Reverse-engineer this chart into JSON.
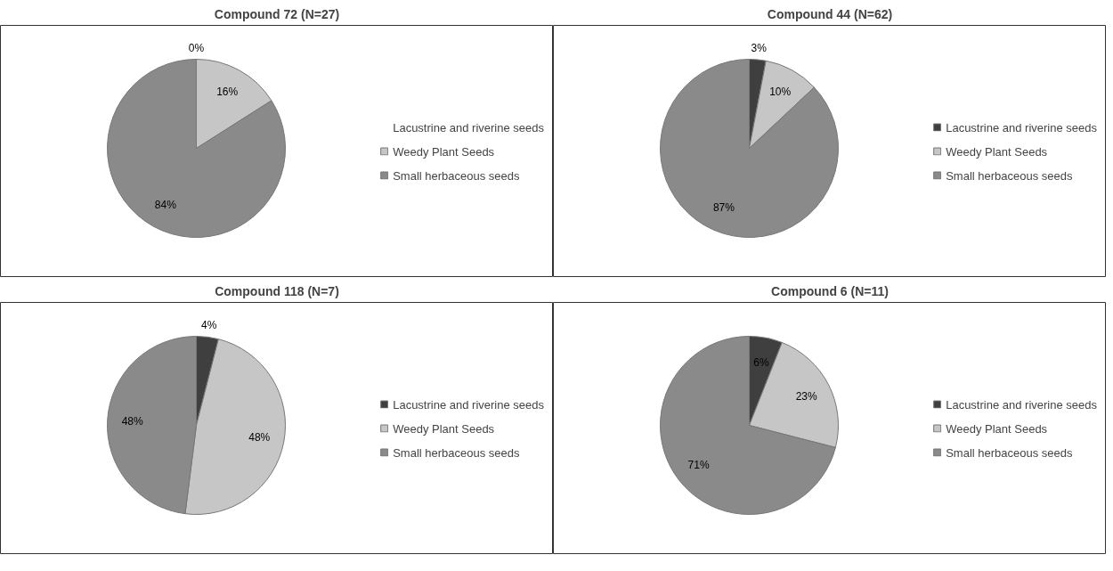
{
  "chart_data": [
    {
      "type": "pie",
      "title": "Compound 72 (N=27)",
      "categories": [
        "Lacustrine and riverine seeds",
        "Weedy Plant Seeds",
        "Small herbaceous seeds"
      ],
      "values": [
        0,
        16,
        84
      ],
      "value_labels": [
        "0%",
        "16%",
        "84%"
      ],
      "colors": [
        "#3f3f3f",
        "#c6c6c6",
        "#8a8a8a"
      ],
      "legend": "right"
    },
    {
      "type": "pie",
      "title": "Compound 44 (N=62)",
      "categories": [
        "Lacustrine and riverine seeds",
        "Weedy Plant Seeds",
        "Small herbaceous seeds"
      ],
      "values": [
        3,
        10,
        87
      ],
      "value_labels": [
        "3%",
        "10%",
        "87%"
      ],
      "colors": [
        "#3f3f3f",
        "#c6c6c6",
        "#8a8a8a"
      ],
      "legend": "right"
    },
    {
      "type": "pie",
      "title": "Compound 118 (N=7)",
      "categories": [
        "Lacustrine and riverine seeds",
        "Weedy Plant Seeds",
        "Small herbaceous seeds"
      ],
      "values": [
        4,
        48,
        48
      ],
      "value_labels": [
        "4%",
        "48%",
        "48%"
      ],
      "colors": [
        "#3f3f3f",
        "#c6c6c6",
        "#8a8a8a"
      ],
      "legend": "right"
    },
    {
      "type": "pie",
      "title": "Compound 6 (N=11)",
      "categories": [
        "Lacustrine and riverine seeds",
        "Weedy Plant Seeds",
        "Small herbaceous seeds"
      ],
      "values": [
        6,
        23,
        71
      ],
      "value_labels": [
        "6%",
        "23%",
        "71%"
      ],
      "colors": [
        "#3f3f3f",
        "#c6c6c6",
        "#8a8a8a"
      ],
      "legend": "right"
    }
  ]
}
